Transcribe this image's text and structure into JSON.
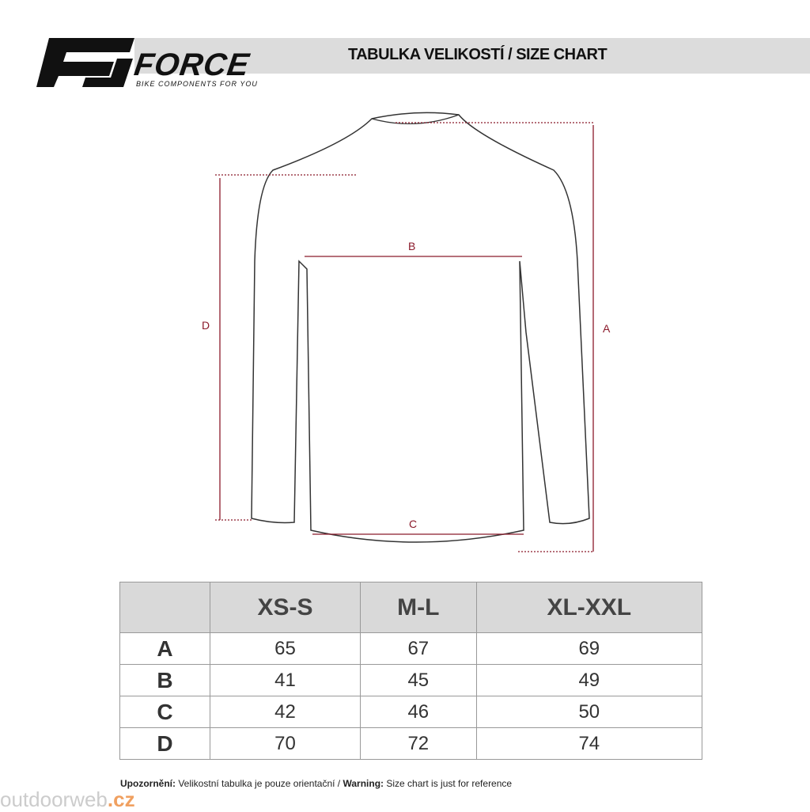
{
  "header": {
    "brand": "FORCE",
    "tagline": "BIKE COMPONENTS FOR YOU",
    "title": "TABULKA VELIKOSTÍ / SIZE CHART"
  },
  "diagram": {
    "labels": {
      "a": "A",
      "b": "B",
      "c": "C",
      "d": "D"
    },
    "line_color": "#8b1a2b"
  },
  "table": {
    "columns": [
      "",
      "XS-S",
      "M-L",
      "XL-XXL"
    ],
    "rows": [
      {
        "label": "A",
        "values": [
          "65",
          "67",
          "69"
        ]
      },
      {
        "label": "B",
        "values": [
          "41",
          "45",
          "49"
        ]
      },
      {
        "label": "C",
        "values": [
          "42",
          "46",
          "50"
        ]
      },
      {
        "label": "D",
        "values": [
          "70",
          "72",
          "74"
        ]
      }
    ]
  },
  "footer": {
    "warn_cz_label": "Upozornění:",
    "warn_cz": " Velikostní tabulka je pouze orientační / ",
    "warn_en_label": "Warning:",
    "warn_en": " Size chart is just for reference"
  },
  "watermark": {
    "main": "outdoorweb",
    "tld": ".cz"
  }
}
